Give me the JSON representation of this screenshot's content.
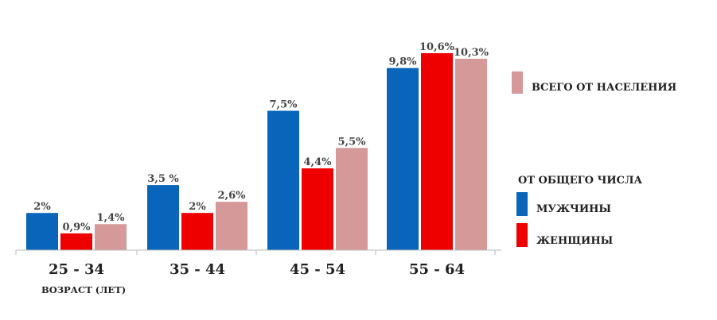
{
  "chart_data": {
    "type": "bar",
    "categories": [
      "25 - 34",
      "35 - 44",
      "45 - 54",
      "55 - 64"
    ],
    "xlabel": "ВОЗРАСТ (ЛЕТ)",
    "ylabel": "",
    "ylim": [
      0,
      11.2
    ],
    "grid": false,
    "colors": {
      "men": "#0865b9",
      "women": "#ee0000",
      "total": "#d6999a"
    },
    "series": [
      {
        "name": "МУЖЧИНЫ",
        "values": [
          2,
          3.5,
          7.5,
          9.8
        ],
        "labels": [
          "2%",
          "3,5 %",
          "7,5%",
          "9,8%"
        ]
      },
      {
        "name": "ЖЕНЩИНЫ",
        "values": [
          0.9,
          2,
          4.4,
          10.6
        ],
        "labels": [
          "0,9%",
          "2%",
          "4,4%",
          "10,6%"
        ]
      },
      {
        "name": "ВСЕГО  ОТ НАСЕЛЕНИЯ",
        "values": [
          1.4,
          2.6,
          5.5,
          10.3
        ],
        "labels": [
          "1,4%",
          "2,6%",
          "5,5%",
          "10,3%"
        ]
      }
    ],
    "legend": {
      "placement": "right",
      "group_title": "ОТ ОБЩЕГО ЧИСЛА"
    }
  }
}
